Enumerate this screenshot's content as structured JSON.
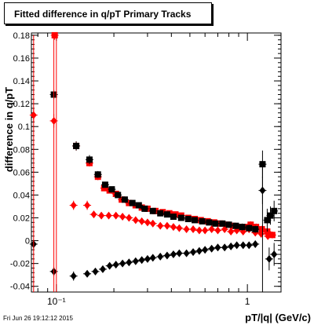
{
  "title": "Fitted difference in q/pT  Primary Tracks",
  "footer": "Fri Jun 26 19:12:12 2015",
  "colors": {
    "red": "#ff0000",
    "black": "#000000",
    "axis": "#000000"
  },
  "chart_data": {
    "type": "scatter",
    "xscale": "log",
    "xlim": [
      0.074,
      1.5
    ],
    "ylim": [
      -0.045,
      0.182
    ],
    "xlabel": "pT/|q| (GeV/c)",
    "ylabel": "difference in q/pT",
    "xticks": [
      {
        "v": 0.1,
        "label": "10⁻¹"
      },
      {
        "v": 1,
        "label": "1"
      }
    ],
    "yticks": [
      -0.04,
      -0.02,
      0,
      0.02,
      0.04,
      0.06,
      0.08,
      0.1,
      0.12,
      0.14,
      0.16,
      0.18
    ],
    "ytick_labels": [
      "-0.04",
      "-0.02",
      "0",
      "0.02",
      "0.04",
      "0.06",
      "0.08",
      "0.1",
      "0.12",
      "0.14",
      "0.16",
      "0.18"
    ],
    "series": [
      {
        "color": "red",
        "marker": "square",
        "points": [
          [
            0.098,
            0.18,
            0.004
          ],
          [
            0.127,
            0.083,
            0.004
          ],
          [
            0.149,
            0.068,
            0.003
          ],
          [
            0.165,
            0.056,
            0.003
          ],
          [
            0.178,
            0.046,
            0.002
          ],
          [
            0.19,
            0.044,
            0.002
          ],
          [
            0.205,
            0.041,
            0.002
          ],
          [
            0.22,
            0.036,
            0.002
          ],
          [
            0.24,
            0.033,
            0.002
          ],
          [
            0.26,
            0.031,
            0.002
          ],
          [
            0.28,
            0.029,
            0.002
          ],
          [
            0.3,
            0.028,
            0.002
          ],
          [
            0.33,
            0.026,
            0.002
          ],
          [
            0.36,
            0.025,
            0.002
          ],
          [
            0.39,
            0.024,
            0.002
          ],
          [
            0.42,
            0.023,
            0.002
          ],
          [
            0.45,
            0.022,
            0.002
          ],
          [
            0.49,
            0.02,
            0.002
          ],
          [
            0.53,
            0.019,
            0.002
          ],
          [
            0.57,
            0.018,
            0.002
          ],
          [
            0.62,
            0.017,
            0.002
          ],
          [
            0.67,
            0.016,
            0.002
          ],
          [
            0.72,
            0.015,
            0.002
          ],
          [
            0.78,
            0.014,
            0.002
          ],
          [
            0.84,
            0.013,
            0.002
          ],
          [
            0.9,
            0.012,
            0.002
          ],
          [
            0.97,
            0.012,
            0.002
          ],
          [
            1.04,
            0.014,
            0.003
          ],
          [
            1.11,
            0.012,
            0.003
          ],
          [
            1.19,
            0.01,
            0.003
          ],
          [
            1.27,
            0.008,
            0.003
          ],
          [
            1.35,
            0.005,
            0.003
          ]
        ]
      },
      {
        "color": "red",
        "marker": "diamond",
        "points": [
          [
            0.076,
            0.11,
            0.006
          ],
          [
            0.097,
            0.105,
            0.006
          ],
          [
            0.123,
            0.031,
            0.004
          ],
          [
            0.145,
            0.031,
            0.004
          ],
          [
            0.157,
            0.023,
            0.003
          ],
          [
            0.172,
            0.022,
            0.002
          ],
          [
            0.188,
            0.022,
            0.002
          ],
          [
            0.205,
            0.022,
            0.002
          ],
          [
            0.222,
            0.021,
            0.002
          ],
          [
            0.24,
            0.02,
            0.002
          ],
          [
            0.26,
            0.018,
            0.002
          ],
          [
            0.28,
            0.017,
            0.002
          ],
          [
            0.3,
            0.016,
            0.002
          ],
          [
            0.32,
            0.015,
            0.002
          ],
          [
            0.35,
            0.013,
            0.002
          ],
          [
            0.38,
            0.013,
            0.002
          ],
          [
            0.41,
            0.012,
            0.002
          ],
          [
            0.44,
            0.011,
            0.002
          ],
          [
            0.48,
            0.01,
            0.002
          ],
          [
            0.52,
            0.01,
            0.002
          ],
          [
            0.56,
            0.009,
            0.002
          ],
          [
            0.6,
            0.009,
            0.002
          ],
          [
            0.65,
            0.01,
            0.002
          ],
          [
            0.7,
            0.009,
            0.002
          ],
          [
            0.76,
            0.01,
            0.002
          ],
          [
            0.82,
            0.008,
            0.002
          ],
          [
            0.88,
            0.009,
            0.002
          ],
          [
            0.95,
            0.008,
            0.002
          ],
          [
            1.02,
            0.01,
            0.003
          ],
          [
            1.1,
            0.007,
            0.003
          ],
          [
            1.18,
            0.006,
            0.003
          ],
          [
            1.28,
            0.004,
            0.003
          ]
        ]
      },
      {
        "color": "black",
        "marker": "square",
        "points": [
          [
            0.097,
            0.128,
            0.004
          ],
          [
            0.127,
            0.083,
            0.004
          ],
          [
            0.149,
            0.071,
            0.004
          ],
          [
            0.165,
            0.058,
            0.003
          ],
          [
            0.18,
            0.049,
            0.002
          ],
          [
            0.195,
            0.045,
            0.002
          ],
          [
            0.21,
            0.04,
            0.002
          ],
          [
            0.228,
            0.036,
            0.002
          ],
          [
            0.25,
            0.033,
            0.002
          ],
          [
            0.27,
            0.031,
            0.002
          ],
          [
            0.29,
            0.028,
            0.002
          ],
          [
            0.32,
            0.026,
            0.002
          ],
          [
            0.35,
            0.024,
            0.002
          ],
          [
            0.38,
            0.023,
            0.002
          ],
          [
            0.41,
            0.021,
            0.002
          ],
          [
            0.45,
            0.02,
            0.002
          ],
          [
            0.49,
            0.019,
            0.002
          ],
          [
            0.53,
            0.018,
            0.002
          ],
          [
            0.58,
            0.017,
            0.002
          ],
          [
            0.63,
            0.016,
            0.002
          ],
          [
            0.68,
            0.015,
            0.002
          ],
          [
            0.74,
            0.015,
            0.002
          ],
          [
            0.8,
            0.014,
            0.002
          ],
          [
            0.87,
            0.013,
            0.002
          ],
          [
            0.94,
            0.012,
            0.003
          ],
          [
            1.02,
            0.011,
            0.003
          ],
          [
            1.1,
            0.01,
            0.003
          ],
          [
            1.2,
            0.067,
            0.012
          ],
          [
            1.27,
            0.018,
            0.01
          ],
          [
            1.32,
            0.022,
            0.008
          ],
          [
            1.38,
            0.026,
            0.009
          ]
        ]
      },
      {
        "color": "black",
        "marker": "diamond",
        "points": [
          [
            0.076,
            -0.003,
            0.004
          ],
          [
            0.097,
            -0.027,
            0.004
          ],
          [
            0.123,
            -0.031,
            0.004
          ],
          [
            0.145,
            -0.029,
            0.003
          ],
          [
            0.16,
            -0.027,
            0.003
          ],
          [
            0.175,
            -0.025,
            0.002
          ],
          [
            0.19,
            -0.022,
            0.002
          ],
          [
            0.205,
            -0.021,
            0.002
          ],
          [
            0.222,
            -0.02,
            0.002
          ],
          [
            0.24,
            -0.019,
            0.002
          ],
          [
            0.26,
            -0.018,
            0.002
          ],
          [
            0.28,
            -0.017,
            0.002
          ],
          [
            0.3,
            -0.016,
            0.002
          ],
          [
            0.32,
            -0.015,
            0.002
          ],
          [
            0.35,
            -0.014,
            0.002
          ],
          [
            0.38,
            -0.013,
            0.002
          ],
          [
            0.41,
            -0.012,
            0.002
          ],
          [
            0.44,
            -0.011,
            0.002
          ],
          [
            0.48,
            -0.011,
            0.002
          ],
          [
            0.52,
            -0.01,
            0.002
          ],
          [
            0.56,
            -0.009,
            0.002
          ],
          [
            0.6,
            -0.008,
            0.002
          ],
          [
            0.65,
            -0.007,
            0.002
          ],
          [
            0.7,
            -0.006,
            0.002
          ],
          [
            0.76,
            -0.006,
            0.002
          ],
          [
            0.82,
            -0.005,
            0.002
          ],
          [
            0.88,
            -0.004,
            0.002
          ],
          [
            0.95,
            -0.004,
            0.002
          ],
          [
            1.02,
            -0.004,
            0.003
          ],
          [
            1.1,
            -0.003,
            0.003
          ],
          [
            1.2,
            0.044,
            0.012
          ],
          [
            1.3,
            -0.016,
            0.01
          ],
          [
            1.38,
            -0.012,
            0.01
          ]
        ]
      }
    ]
  }
}
